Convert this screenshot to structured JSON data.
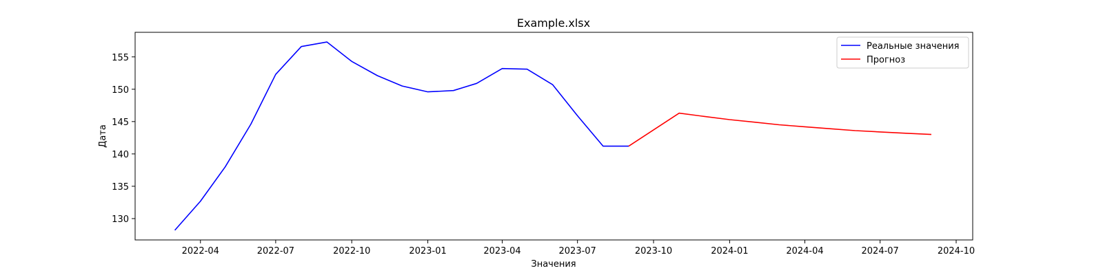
{
  "chart_data": {
    "type": "line",
    "title": "Example.xlsx",
    "xlabel": "Значения",
    "ylabel": "Дата",
    "x_axis_type": "date",
    "xlim": [
      "2022-01-12",
      "2024-10-21"
    ],
    "ylim": [
      126.7,
      158.8
    ],
    "x_ticks": [
      "2022-04-01",
      "2022-07-01",
      "2022-10-01",
      "2023-01-01",
      "2023-04-01",
      "2023-07-01",
      "2023-10-01",
      "2024-01-01",
      "2024-04-01",
      "2024-07-01",
      "2024-10-01"
    ],
    "x_tick_labels": [
      "2022-04",
      "2022-07",
      "2022-10",
      "2023-01",
      "2023-04",
      "2023-07",
      "2023-10",
      "2024-01",
      "2024-04",
      "2024-07",
      "2024-10"
    ],
    "y_ticks": [
      130,
      135,
      140,
      145,
      150,
      155
    ],
    "y_tick_labels": [
      "130",
      "135",
      "140",
      "145",
      "150",
      "155"
    ],
    "grid": false,
    "legend_position": "top-right",
    "series": [
      {
        "name": "Реальные значения",
        "color": "#0000ff",
        "x": [
          "2022-03-01",
          "2022-04-01",
          "2022-05-01",
          "2022-06-01",
          "2022-07-01",
          "2022-08-01",
          "2022-09-01",
          "2022-10-01",
          "2022-11-01",
          "2022-12-01",
          "2023-01-01",
          "2023-02-01",
          "2023-03-01",
          "2023-04-01",
          "2023-05-01",
          "2023-06-01",
          "2023-07-01",
          "2023-08-01",
          "2023-09-01"
        ],
        "y": [
          128.2,
          132.7,
          138.0,
          144.6,
          152.3,
          156.6,
          157.3,
          154.3,
          152.1,
          150.5,
          149.6,
          149.8,
          150.9,
          153.2,
          153.1,
          150.7,
          145.9,
          141.2,
          141.2
        ]
      },
      {
        "name": "Прогноз",
        "color": "#ff0000",
        "x": [
          "2023-09-01",
          "2023-11-01",
          "2023-12-01",
          "2024-01-01",
          "2024-02-01",
          "2024-03-01",
          "2024-04-01",
          "2024-05-01",
          "2024-06-01",
          "2024-07-01",
          "2024-08-01",
          "2024-09-01"
        ],
        "y": [
          141.2,
          146.3,
          145.8,
          145.3,
          144.9,
          144.5,
          144.2,
          143.9,
          143.6,
          143.4,
          143.2,
          143.0
        ]
      }
    ]
  }
}
